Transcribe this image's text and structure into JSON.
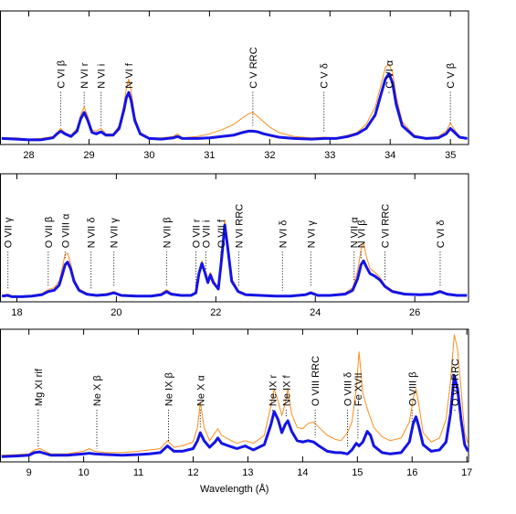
{
  "chart_data": [
    {
      "type": "line",
      "xlim": [
        27.53,
        35.3
      ],
      "ylim": [
        0,
        10
      ],
      "xticks": [
        28,
        29,
        30,
        31,
        32,
        33,
        34,
        35
      ],
      "x": [
        27.55,
        27.8,
        28.0,
        28.2,
        28.4,
        28.47,
        28.53,
        28.6,
        28.7,
        28.8,
        28.86,
        28.92,
        28.98,
        29.05,
        29.12,
        29.2,
        29.28,
        29.4,
        29.5,
        29.58,
        29.62,
        29.66,
        29.7,
        29.76,
        29.85,
        30.0,
        30.2,
        30.4,
        30.47,
        30.55,
        30.8,
        31.0,
        31.2,
        31.4,
        31.55,
        31.65,
        31.72,
        31.8,
        31.9,
        32.0,
        32.15,
        32.4,
        32.7,
        32.9,
        33.1,
        33.3,
        33.45,
        33.6,
        33.75,
        33.85,
        33.92,
        33.98,
        34.04,
        34.1,
        34.2,
        34.4,
        34.6,
        34.8,
        34.93,
        35.0,
        35.07,
        35.15,
        35.28
      ],
      "series": [
        {
          "color": "#ff8c1a",
          "values": [
            0.5,
            0.5,
            0.4,
            0.45,
            0.6,
            0.9,
            1.2,
            0.9,
            0.7,
            1.2,
            2.2,
            2.8,
            2.1,
            1.1,
            1.0,
            1.2,
            0.8,
            0.8,
            1.4,
            3.0,
            4.2,
            4.9,
            4.0,
            2.1,
            0.9,
            0.5,
            0.5,
            0.6,
            0.8,
            0.5,
            0.6,
            0.8,
            1.1,
            1.5,
            2.0,
            2.3,
            2.4,
            2.1,
            1.7,
            1.3,
            0.9,
            0.6,
            0.5,
            0.55,
            0.5,
            0.7,
            0.9,
            1.5,
            2.8,
            4.5,
            5.8,
            6.0,
            5.4,
            3.6,
            1.7,
            0.7,
            0.5,
            0.6,
            1.0,
            1.6,
            1.1,
            0.6,
            0.5
          ]
        },
        {
          "color": "#1414e6",
          "values": [
            0.45,
            0.4,
            0.35,
            0.35,
            0.5,
            0.8,
            1.0,
            0.8,
            0.6,
            1.0,
            1.9,
            2.4,
            1.8,
            0.9,
            0.8,
            0.95,
            0.7,
            0.7,
            1.2,
            2.6,
            3.5,
            3.9,
            3.3,
            1.8,
            0.8,
            0.45,
            0.4,
            0.5,
            0.6,
            0.45,
            0.45,
            0.5,
            0.6,
            0.7,
            0.9,
            1.0,
            1.0,
            0.95,
            0.8,
            0.7,
            0.55,
            0.45,
            0.4,
            0.45,
            0.45,
            0.6,
            0.8,
            1.2,
            2.2,
            3.8,
            4.9,
            5.3,
            4.6,
            3.0,
            1.4,
            0.6,
            0.45,
            0.5,
            0.8,
            1.2,
            0.9,
            0.55,
            0.45
          ]
        }
      ],
      "annotations": [
        {
          "text": "C VI β",
          "x": 28.53
        },
        {
          "text": "N VI r",
          "x": 28.92
        },
        {
          "text": "N VI i",
          "x": 29.2
        },
        {
          "text": "N VI f",
          "x": 29.66
        },
        {
          "text": "C V RRC",
          "x": 31.72
        },
        {
          "text": "C V δ",
          "x": 32.9
        },
        {
          "text": "C VI α",
          "x": 33.98
        },
        {
          "text": "C V β",
          "x": 35.0
        }
      ]
    },
    {
      "type": "line",
      "xlim": [
        17.67,
        27.08
      ],
      "ylim": [
        0,
        10
      ],
      "xticks": [
        18,
        20,
        22,
        24,
        26
      ],
      "x": [
        17.7,
        17.82,
        17.9,
        18.1,
        18.3,
        18.5,
        18.63,
        18.75,
        18.85,
        18.92,
        18.97,
        19.02,
        19.08,
        19.15,
        19.25,
        19.4,
        19.49,
        19.6,
        19.8,
        19.95,
        20.1,
        20.4,
        20.7,
        20.9,
        21.01,
        21.1,
        21.3,
        21.5,
        21.6,
        21.66,
        21.72,
        21.78,
        21.84,
        21.89,
        21.95,
        22.05,
        22.12,
        22.18,
        22.24,
        22.32,
        22.45,
        22.6,
        22.9,
        23.2,
        23.5,
        23.8,
        23.91,
        24.05,
        24.3,
        24.6,
        24.75,
        24.85,
        24.92,
        24.97,
        25.03,
        25.1,
        25.2,
        25.3,
        25.4,
        25.55,
        25.8,
        26.1,
        26.35,
        26.51,
        26.65,
        26.85,
        27.05
      ],
      "series": [
        {
          "color": "#ff8c1a",
          "values": [
            0.5,
            0.6,
            0.45,
            0.45,
            0.5,
            0.65,
            0.95,
            1.1,
            1.6,
            2.8,
            3.7,
            3.8,
            3.0,
            1.8,
            1.0,
            0.7,
            0.6,
            0.55,
            0.65,
            0.8,
            0.55,
            0.5,
            0.5,
            0.65,
            0.95,
            0.7,
            0.55,
            0.55,
            0.8,
            2.4,
            3.2,
            2.5,
            1.7,
            2.3,
            1.7,
            1.1,
            3.8,
            6.4,
            4.5,
            1.8,
            0.9,
            0.6,
            0.55,
            0.5,
            0.5,
            0.6,
            0.8,
            0.55,
            0.55,
            0.7,
            1.1,
            2.4,
            4.1,
            4.6,
            3.5,
            2.6,
            2.3,
            1.9,
            1.3,
            0.9,
            0.65,
            0.6,
            0.65,
            0.9,
            0.65,
            0.55,
            0.55
          ]
        },
        {
          "color": "#1414e6",
          "values": [
            0.45,
            0.5,
            0.4,
            0.4,
            0.45,
            0.55,
            0.8,
            0.9,
            1.3,
            2.2,
            2.9,
            3.1,
            2.6,
            1.6,
            0.9,
            0.6,
            0.55,
            0.5,
            0.55,
            0.7,
            0.5,
            0.45,
            0.45,
            0.55,
            0.8,
            0.6,
            0.5,
            0.5,
            0.7,
            2.2,
            3.0,
            2.3,
            1.5,
            2.1,
            1.5,
            1.0,
            3.5,
            6.0,
            4.2,
            1.6,
            0.8,
            0.55,
            0.5,
            0.45,
            0.45,
            0.55,
            0.7,
            0.5,
            0.5,
            0.6,
            0.9,
            1.8,
            2.9,
            3.2,
            2.7,
            2.2,
            2.0,
            1.7,
            1.2,
            0.8,
            0.6,
            0.55,
            0.6,
            0.8,
            0.6,
            0.5,
            0.5
          ]
        }
      ],
      "annotations": [
        {
          "text": "O VII γ",
          "x": 17.82
        },
        {
          "text": "O VII β",
          "x": 18.63
        },
        {
          "text": "O VIII α",
          "x": 18.97
        },
        {
          "text": "N VII δ",
          "x": 19.49
        },
        {
          "text": "N VII γ",
          "x": 19.95
        },
        {
          "text": "N VII β",
          "x": 21.01
        },
        {
          "text": "O VII r",
          "x": 21.6
        },
        {
          "text": "O VII i",
          "x": 21.8
        },
        {
          "text": "O VII f",
          "x": 22.1
        },
        {
          "text": "N VI RRC",
          "x": 22.46
        },
        {
          "text": "N VI δ",
          "x": 23.34
        },
        {
          "text": "N VI γ",
          "x": 23.91
        },
        {
          "text": "N VII α",
          "x": 24.78
        },
        {
          "text": "N VI β",
          "x": 24.92
        },
        {
          "text": "C VI RRC",
          "x": 25.4
        },
        {
          "text": "C VI δ",
          "x": 26.51
        }
      ]
    },
    {
      "type": "line",
      "xlim": [
        8.48,
        17.03
      ],
      "ylim": [
        0,
        10
      ],
      "xticks": [
        9,
        10,
        11,
        12,
        13,
        14,
        15,
        16,
        17
      ],
      "xlabel": "Wavelength (Å)",
      "x": [
        8.5,
        8.8,
        9.0,
        9.1,
        9.2,
        9.4,
        9.7,
        10.0,
        10.1,
        10.2,
        10.4,
        10.7,
        11.0,
        11.2,
        11.4,
        11.53,
        11.65,
        11.8,
        12.0,
        12.08,
        12.13,
        12.2,
        12.3,
        12.4,
        12.45,
        12.52,
        12.65,
        12.8,
        12.95,
        13.1,
        13.3,
        13.42,
        13.48,
        13.55,
        13.62,
        13.68,
        13.73,
        13.8,
        13.9,
        14.0,
        14.1,
        14.2,
        14.3,
        14.45,
        14.6,
        14.7,
        14.82,
        14.9,
        14.98,
        15.03,
        15.1,
        15.18,
        15.24,
        15.3,
        15.45,
        15.6,
        15.8,
        15.95,
        16.02,
        16.07,
        16.12,
        16.2,
        16.35,
        16.5,
        16.62,
        16.7,
        16.77,
        16.83,
        16.9,
        16.96,
        17.02
      ],
      "series": [
        {
          "color": "#ff8c1a",
          "values": [
            0.5,
            0.55,
            0.6,
            0.9,
            1.0,
            0.6,
            0.6,
            0.8,
            1.0,
            0.8,
            0.7,
            0.7,
            0.8,
            0.9,
            1.0,
            1.6,
            1.1,
            1.2,
            1.5,
            2.6,
            4.5,
            2.6,
            1.6,
            2.2,
            2.5,
            2.0,
            1.7,
            1.4,
            1.6,
            1.4,
            2.0,
            4.2,
            5.5,
            4.6,
            3.5,
            4.4,
            5.5,
            3.6,
            2.6,
            2.5,
            2.9,
            3.0,
            2.6,
            2.0,
            1.7,
            1.6,
            2.2,
            3.0,
            5.5,
            8.3,
            5.2,
            4.0,
            3.3,
            2.6,
            1.9,
            1.6,
            1.8,
            3.0,
            4.8,
            5.5,
            4.4,
            2.2,
            1.5,
            1.8,
            3.2,
            6.0,
            9.6,
            8.5,
            5.2,
            2.2,
            1.4
          ]
        },
        {
          "color": "#1414e6",
          "values": [
            0.4,
            0.45,
            0.5,
            0.7,
            0.75,
            0.5,
            0.5,
            0.6,
            0.65,
            0.6,
            0.55,
            0.5,
            0.55,
            0.6,
            0.7,
            1.2,
            0.8,
            0.8,
            1.0,
            1.6,
            2.2,
            1.6,
            1.1,
            1.5,
            1.8,
            1.4,
            1.2,
            1.0,
            1.2,
            0.9,
            1.3,
            2.8,
            3.8,
            3.2,
            2.2,
            2.8,
            3.1,
            2.3,
            1.6,
            1.5,
            1.6,
            1.5,
            1.2,
            0.8,
            0.7,
            0.7,
            0.6,
            0.9,
            1.4,
            1.2,
            1.5,
            2.3,
            2.0,
            1.2,
            0.7,
            0.6,
            0.7,
            1.5,
            2.9,
            3.4,
            2.7,
            1.3,
            0.8,
            0.9,
            1.5,
            3.6,
            6.5,
            5.5,
            3.0,
            1.3,
            0.8
          ]
        }
      ],
      "annotations": [
        {
          "text": "Mg XI rif",
          "x": 9.17
        },
        {
          "text": "Ne X β",
          "x": 10.24
        },
        {
          "text": "Ne IX β",
          "x": 11.55
        },
        {
          "text": "Ne X α",
          "x": 12.13
        },
        {
          "text": "Ne IX r",
          "x": 13.45
        },
        {
          "text": "Ne IX f",
          "x": 13.7
        },
        {
          "text": "O VIII RRC",
          "x": 14.23
        },
        {
          "text": "O VIII δ",
          "x": 14.82
        },
        {
          "text": "Fe XVII",
          "x": 15.01
        },
        {
          "text": "O VIII β",
          "x": 16.0
        },
        {
          "text": "O VII RRC",
          "x": 16.78
        }
      ]
    }
  ]
}
